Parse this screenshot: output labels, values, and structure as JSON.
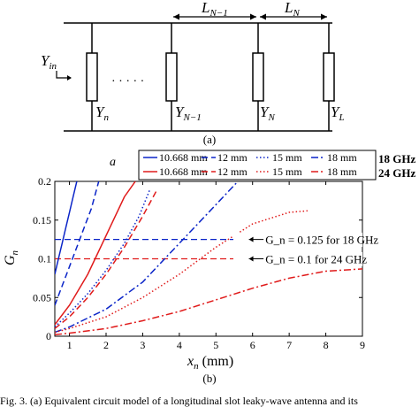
{
  "panel_a": {
    "label": "(a)",
    "y_in": "Y_in",
    "y_n": "Y_n",
    "y_n_minus_1": "Y_{N−1}",
    "y_N": "Y_N",
    "y_L": "Y_L",
    "dots": "· · · · ·",
    "L_N_minus_1": "L_{N−1}",
    "L_N": "L_N"
  },
  "panel_b": {
    "label": "(b)",
    "legend_header": "a",
    "legend_rows": [
      {
        "freq": "18 GHz",
        "color": "#0a24c8",
        "entries": [
          "10.668 mm",
          "12 mm",
          "15 mm",
          "18 mm"
        ]
      },
      {
        "freq": "24 GHz",
        "color": "#e01b1b",
        "entries": [
          "10.668 mm",
          "12 mm",
          "15 mm",
          "18 mm"
        ]
      }
    ],
    "annotations": [
      {
        "text": "G_n = 0.125   for 18 GHz",
        "value": 0.125,
        "color": "#0a24c8"
      },
      {
        "text": "G_n = 0.1      for 24 GHz",
        "value": 0.1,
        "color": "#e01b1b"
      }
    ]
  },
  "caption": "Fig. 3.   (a) Equivalent circuit model of a longitudinal slot leaky-wave antenna and its",
  "chart_data": {
    "type": "line",
    "xlabel": "x_n (mm)",
    "ylabel": "G_n",
    "xlim": [
      0.6,
      9
    ],
    "ylim": [
      0,
      0.2
    ],
    "xticks": [
      1,
      2,
      3,
      4,
      5,
      6,
      7,
      8,
      9
    ],
    "yticks": [
      0,
      0.05,
      0.1,
      0.15,
      0.2
    ],
    "ytick_labels": [
      "0",
      "0.05",
      "0.1",
      "0.15",
      "0.2"
    ],
    "grid": false,
    "legend": "top-right",
    "series": [
      {
        "freq": "18 GHz",
        "a": "10.668 mm",
        "color": "#0a24c8",
        "dash": "solid",
        "x": [
          0.6,
          0.7,
          0.8,
          0.9,
          1.0,
          1.1,
          1.2
        ],
        "y": [
          0.08,
          0.1,
          0.12,
          0.14,
          0.16,
          0.18,
          0.2
        ]
      },
      {
        "freq": "18 GHz",
        "a": "12 mm",
        "color": "#0a24c8",
        "dash": "dash",
        "x": [
          0.6,
          0.8,
          1.0,
          1.2,
          1.4,
          1.6,
          1.8
        ],
        "y": [
          0.04,
          0.065,
          0.09,
          0.115,
          0.14,
          0.165,
          0.2
        ]
      },
      {
        "freq": "18 GHz",
        "a": "15 mm",
        "color": "#0a24c8",
        "dash": "dot",
        "x": [
          0.6,
          1.0,
          1.5,
          2.0,
          2.5,
          2.9,
          3.2
        ],
        "y": [
          0.012,
          0.03,
          0.055,
          0.085,
          0.12,
          0.155,
          0.19
        ]
      },
      {
        "freq": "18 GHz",
        "a": "18 mm",
        "color": "#0a24c8",
        "dash": "dashdot",
        "x": [
          0.6,
          1.0,
          2.0,
          3.0,
          4.0,
          5.0,
          5.6
        ],
        "y": [
          0.005,
          0.012,
          0.035,
          0.07,
          0.12,
          0.17,
          0.2
        ]
      },
      {
        "freq": "24 GHz",
        "a": "10.668 mm",
        "color": "#e01b1b",
        "dash": "solid",
        "x": [
          0.6,
          1.0,
          1.5,
          2.0,
          2.5,
          2.8
        ],
        "y": [
          0.015,
          0.04,
          0.08,
          0.13,
          0.18,
          0.2
        ]
      },
      {
        "freq": "24 GHz",
        "a": "12 mm",
        "color": "#e01b1b",
        "dash": "dash",
        "x": [
          0.6,
          1.0,
          1.5,
          2.0,
          2.5,
          3.0,
          3.4
        ],
        "y": [
          0.01,
          0.025,
          0.05,
          0.08,
          0.115,
          0.155,
          0.19
        ]
      },
      {
        "freq": "24 GHz",
        "a": "15 mm",
        "color": "#e01b1b",
        "dash": "dot",
        "x": [
          0.6,
          1.0,
          2.0,
          3.0,
          4.0,
          5.0,
          6.0,
          7.0,
          7.5
        ],
        "y": [
          0.005,
          0.01,
          0.025,
          0.05,
          0.08,
          0.115,
          0.145,
          0.16,
          0.162
        ]
      },
      {
        "freq": "24 GHz",
        "a": "18 mm",
        "color": "#e01b1b",
        "dash": "dashdot",
        "x": [
          0.6,
          1.0,
          2.0,
          3.0,
          4.0,
          5.0,
          6.0,
          7.0,
          8.0,
          9.0
        ],
        "y": [
          0.002,
          0.004,
          0.01,
          0.02,
          0.032,
          0.047,
          0.062,
          0.075,
          0.084,
          0.087
        ]
      }
    ],
    "reference_lines": [
      {
        "y": 0.125,
        "color": "#0a24c8",
        "dash": "dash",
        "x_end": 5.9
      },
      {
        "y": 0.1,
        "color": "#e01b1b",
        "dash": "dash",
        "x_end": 5.9
      }
    ]
  }
}
